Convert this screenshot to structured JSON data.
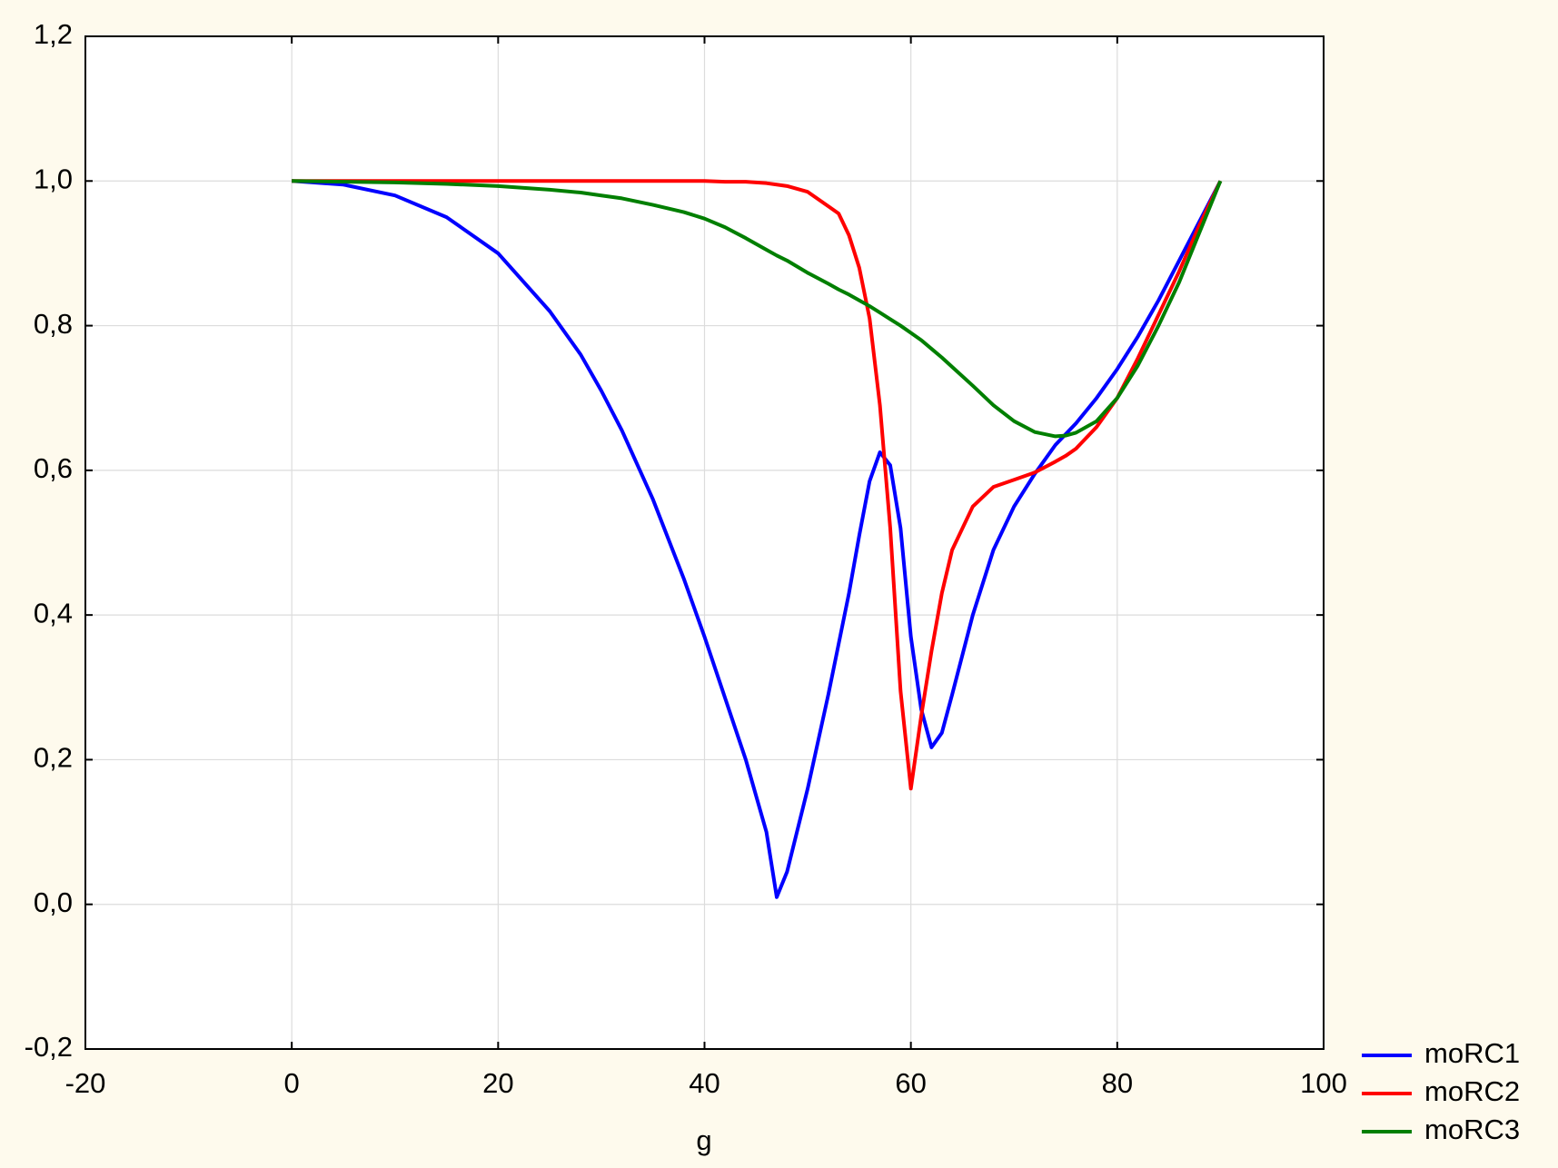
{
  "chart_data": {
    "type": "line",
    "xlabel": "g",
    "x": [
      0,
      5,
      10,
      15,
      20,
      25,
      28,
      30,
      32,
      35,
      38,
      40,
      42,
      44,
      46,
      47,
      48,
      50,
      52,
      53,
      54,
      55,
      56,
      57,
      58,
      59,
      60,
      61,
      62,
      63,
      64,
      66,
      68,
      70,
      72,
      74,
      75,
      76,
      78,
      80,
      82,
      84,
      86,
      88,
      90
    ],
    "series": [
      {
        "name": "moRC1",
        "color": "#0000ff",
        "values": [
          1.0,
          0.995,
          0.98,
          0.95,
          0.9,
          0.82,
          0.76,
          0.71,
          0.655,
          0.56,
          0.45,
          0.37,
          0.285,
          0.2,
          0.1,
          0.01,
          0.045,
          0.16,
          0.29,
          0.36,
          0.43,
          0.51,
          0.585,
          0.625,
          0.607,
          0.52,
          0.37,
          0.27,
          0.217,
          0.237,
          0.29,
          0.4,
          0.49,
          0.55,
          0.595,
          0.635,
          0.65,
          0.665,
          0.7,
          0.74,
          0.785,
          0.835,
          0.89,
          0.945,
          1.0
        ]
      },
      {
        "name": "moRC2",
        "color": "#ff0000",
        "values": [
          1.0,
          1.0,
          1.0,
          1.0,
          1.0,
          1.0,
          1.0,
          1.0,
          1.0,
          1.0,
          1.0,
          1.0,
          0.999,
          0.999,
          0.997,
          0.995,
          0.993,
          0.985,
          0.965,
          0.955,
          0.925,
          0.88,
          0.81,
          0.69,
          0.52,
          0.295,
          0.16,
          0.26,
          0.35,
          0.43,
          0.49,
          0.55,
          0.577,
          0.587,
          0.597,
          0.612,
          0.62,
          0.63,
          0.66,
          0.7,
          0.755,
          0.815,
          0.875,
          0.94,
          1.0
        ]
      },
      {
        "name": "moRC3",
        "color": "#007f00",
        "values": [
          1.0,
          0.999,
          0.998,
          0.996,
          0.993,
          0.988,
          0.984,
          0.98,
          0.976,
          0.967,
          0.957,
          0.948,
          0.936,
          0.921,
          0.905,
          0.897,
          0.89,
          0.873,
          0.858,
          0.85,
          0.843,
          0.835,
          0.827,
          0.818,
          0.809,
          0.8,
          0.79,
          0.78,
          0.768,
          0.756,
          0.743,
          0.717,
          0.69,
          0.668,
          0.653,
          0.647,
          0.648,
          0.652,
          0.668,
          0.7,
          0.745,
          0.8,
          0.86,
          0.93,
          1.0
        ]
      }
    ],
    "xlim": [
      -20,
      100
    ],
    "xticks": [
      -20,
      0,
      20,
      40,
      60,
      80,
      100
    ],
    "ylim": [
      -0.2,
      1.2
    ],
    "yticks": [
      {
        "value": -0.2,
        "label": "-0,2"
      },
      {
        "value": 0,
        "label": "0,0"
      },
      {
        "value": 0.2,
        "label": "0,2"
      },
      {
        "value": 0.4,
        "label": "0,4"
      },
      {
        "value": 0.6,
        "label": "0,6"
      },
      {
        "value": 0.8,
        "label": "0,8"
      },
      {
        "value": 1.0,
        "label": "1,0"
      },
      {
        "value": 1.2,
        "label": "1,2"
      }
    ],
    "grid": true,
    "legend": "lower right"
  }
}
